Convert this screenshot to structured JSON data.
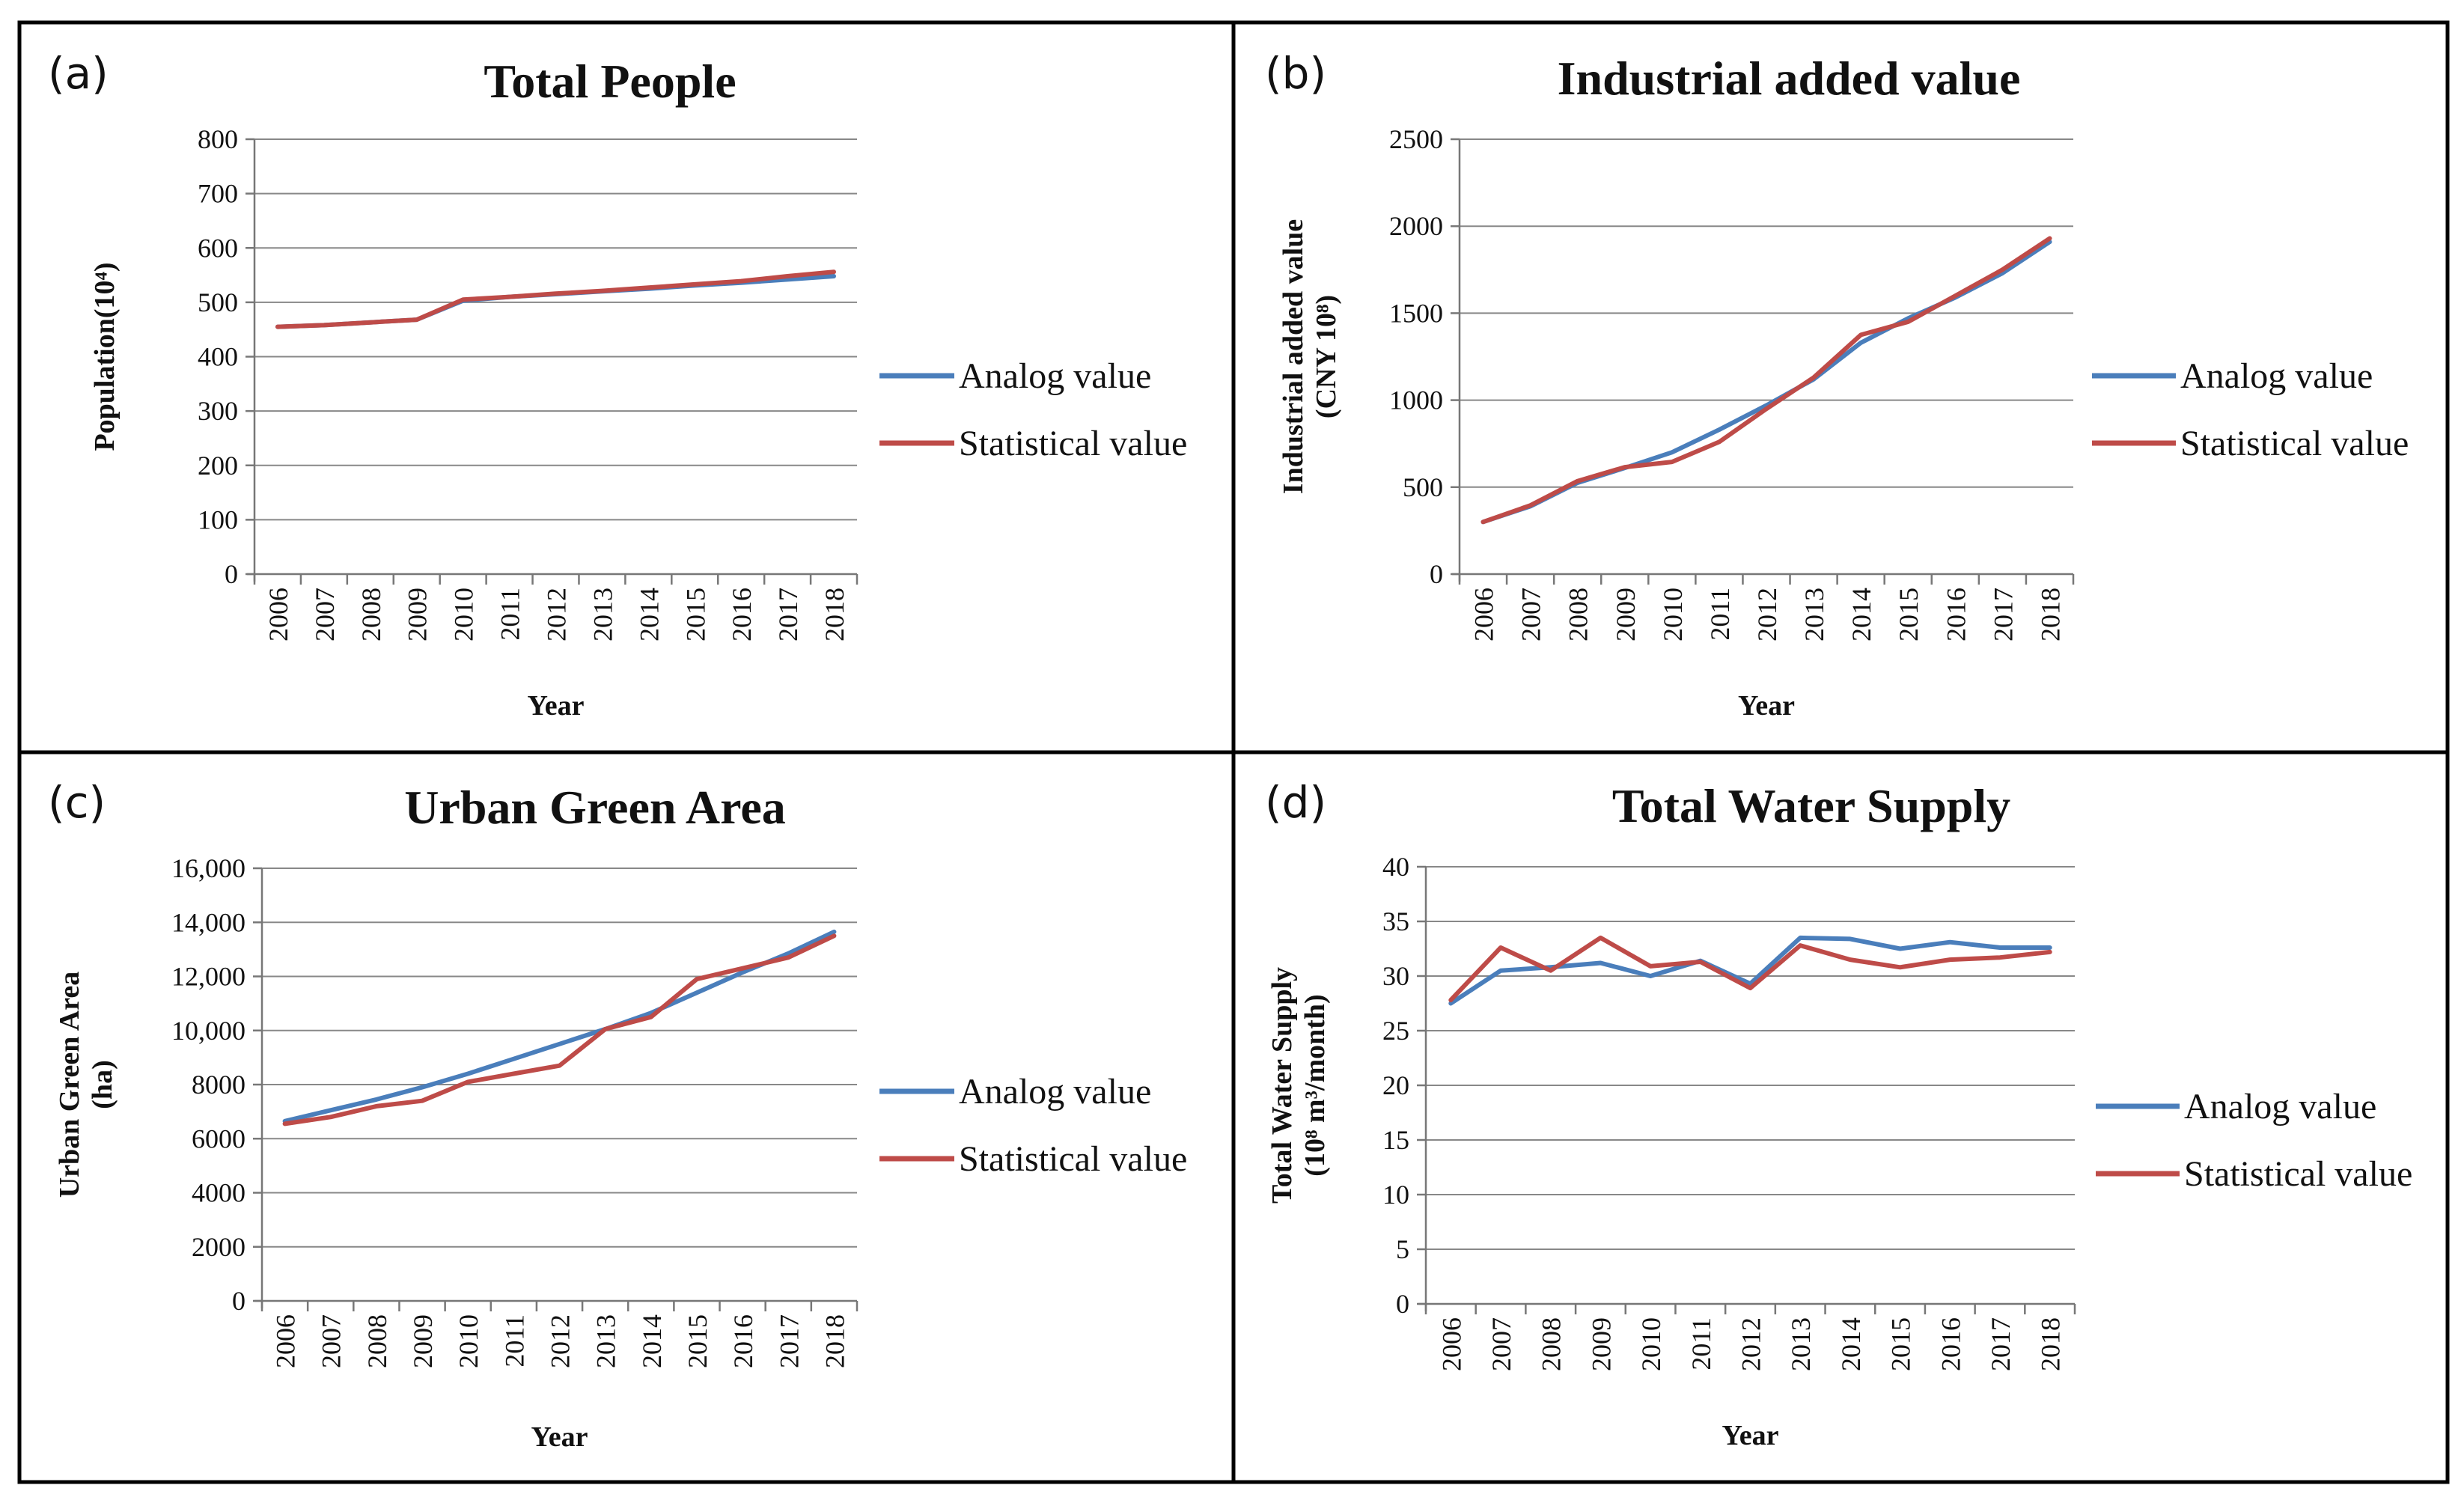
{
  "chart_data": [
    {
      "panel": "(a)",
      "type": "line",
      "title": "Total People",
      "xlabel": "Year",
      "ylabel": [
        "Population(10⁴)"
      ],
      "ylim": [
        0,
        800
      ],
      "yticks": [
        0,
        100,
        200,
        300,
        400,
        500,
        600,
        700,
        800
      ],
      "ytick_labels": [
        "0",
        "100",
        "200",
        "300",
        "400",
        "500",
        "600",
        "700",
        "800"
      ],
      "categories": [
        "2006",
        "2007",
        "2008",
        "2009",
        "2010",
        "2011",
        "2012",
        "2013",
        "2014",
        "2015",
        "2016",
        "2017",
        "2018"
      ],
      "grid": true,
      "legend_position": "right",
      "series": [
        {
          "name": "Analog value",
          "color": "#4a7ebb",
          "values": [
            455,
            458,
            463,
            468,
            503,
            510,
            515,
            520,
            525,
            531,
            536,
            542,
            548
          ]
        },
        {
          "name": "Statistical value",
          "color": "#be4b48",
          "values": [
            455,
            458,
            463,
            468,
            505,
            510,
            516,
            521,
            527,
            533,
            539,
            548,
            556
          ]
        }
      ]
    },
    {
      "panel": "(b)",
      "type": "line",
      "title": "Industrial added value",
      "xlabel": "Year",
      "ylabel": [
        "Industrial  added value",
        "(CNY 10⁸)"
      ],
      "ylim": [
        0,
        2500
      ],
      "yticks": [
        0,
        500,
        1000,
        1500,
        2000,
        2500
      ],
      "ytick_labels": [
        "0",
        "500",
        "1000",
        "1500",
        "2000",
        "2500"
      ],
      "categories": [
        "2006",
        "2007",
        "2008",
        "2009",
        "2010",
        "2011",
        "2012",
        "2013",
        "2014",
        "2015",
        "2016",
        "2017",
        "2018"
      ],
      "grid": true,
      "legend_position": "right",
      "series": [
        {
          "name": "Analog value",
          "color": "#4a7ebb",
          "values": [
            300,
            390,
            525,
            610,
            700,
            830,
            970,
            1120,
            1330,
            1470,
            1590,
            1730,
            1910
          ]
        },
        {
          "name": "Statistical value",
          "color": "#be4b48",
          "values": [
            300,
            395,
            535,
            615,
            645,
            760,
            950,
            1130,
            1375,
            1450,
            1600,
            1750,
            1930
          ]
        }
      ]
    },
    {
      "panel": "(c)",
      "type": "line",
      "title": "Urban Green Area",
      "xlabel": "Year",
      "ylabel": [
        "Urban Green Area",
        "(ha)"
      ],
      "ylim": [
        0,
        16000
      ],
      "yticks": [
        0,
        2000,
        4000,
        6000,
        8000,
        10000,
        12000,
        14000,
        16000
      ],
      "ytick_labels": [
        "0",
        "2000",
        "4000",
        "6000",
        "8000",
        "10,000",
        "12,000",
        "14,000",
        "16,000"
      ],
      "categories": [
        "2006",
        "2007",
        "2008",
        "2009",
        "2010",
        "2011",
        "2012",
        "2013",
        "2014",
        "2015",
        "2016",
        "2017",
        "2018"
      ],
      "grid": true,
      "legend_position": "right",
      "series": [
        {
          "name": "Analog value",
          "color": "#4a7ebb",
          "values": [
            6650,
            7050,
            7450,
            7900,
            8400,
            8950,
            9500,
            10050,
            10650,
            11400,
            12150,
            12850,
            13650
          ]
        },
        {
          "name": "Statistical value",
          "color": "#be4b48",
          "values": [
            6550,
            6800,
            7200,
            7400,
            8100,
            8400,
            8700,
            10050,
            10500,
            11900,
            12300,
            12700,
            13500
          ]
        }
      ]
    },
    {
      "panel": "(d)",
      "type": "line",
      "title": "Total Water Supply",
      "xlabel": "Year",
      "ylabel": [
        "Total Water Supply",
        "(10⁸ m³/month)"
      ],
      "ylim": [
        0,
        40
      ],
      "yticks": [
        0,
        5,
        10,
        15,
        20,
        25,
        30,
        35,
        40
      ],
      "ytick_labels": [
        "0",
        "5",
        "10",
        "15",
        "20",
        "25",
        "30",
        "35",
        "40"
      ],
      "categories": [
        "2006",
        "2007",
        "2008",
        "2009",
        "2010",
        "2011",
        "2012",
        "2013",
        "2014",
        "2015",
        "2016",
        "2017",
        "2018"
      ],
      "grid": true,
      "legend_position": "right",
      "series": [
        {
          "name": "Analog value",
          "color": "#4a7ebb",
          "values": [
            27.5,
            30.5,
            30.8,
            31.2,
            30.0,
            31.4,
            29.3,
            33.5,
            33.4,
            32.5,
            33.1,
            32.6,
            32.6
          ]
        },
        {
          "name": "Statistical value",
          "color": "#be4b48",
          "values": [
            27.8,
            32.6,
            30.5,
            33.5,
            30.9,
            31.3,
            28.9,
            32.8,
            31.5,
            30.8,
            31.5,
            31.7,
            32.2
          ]
        }
      ]
    }
  ]
}
